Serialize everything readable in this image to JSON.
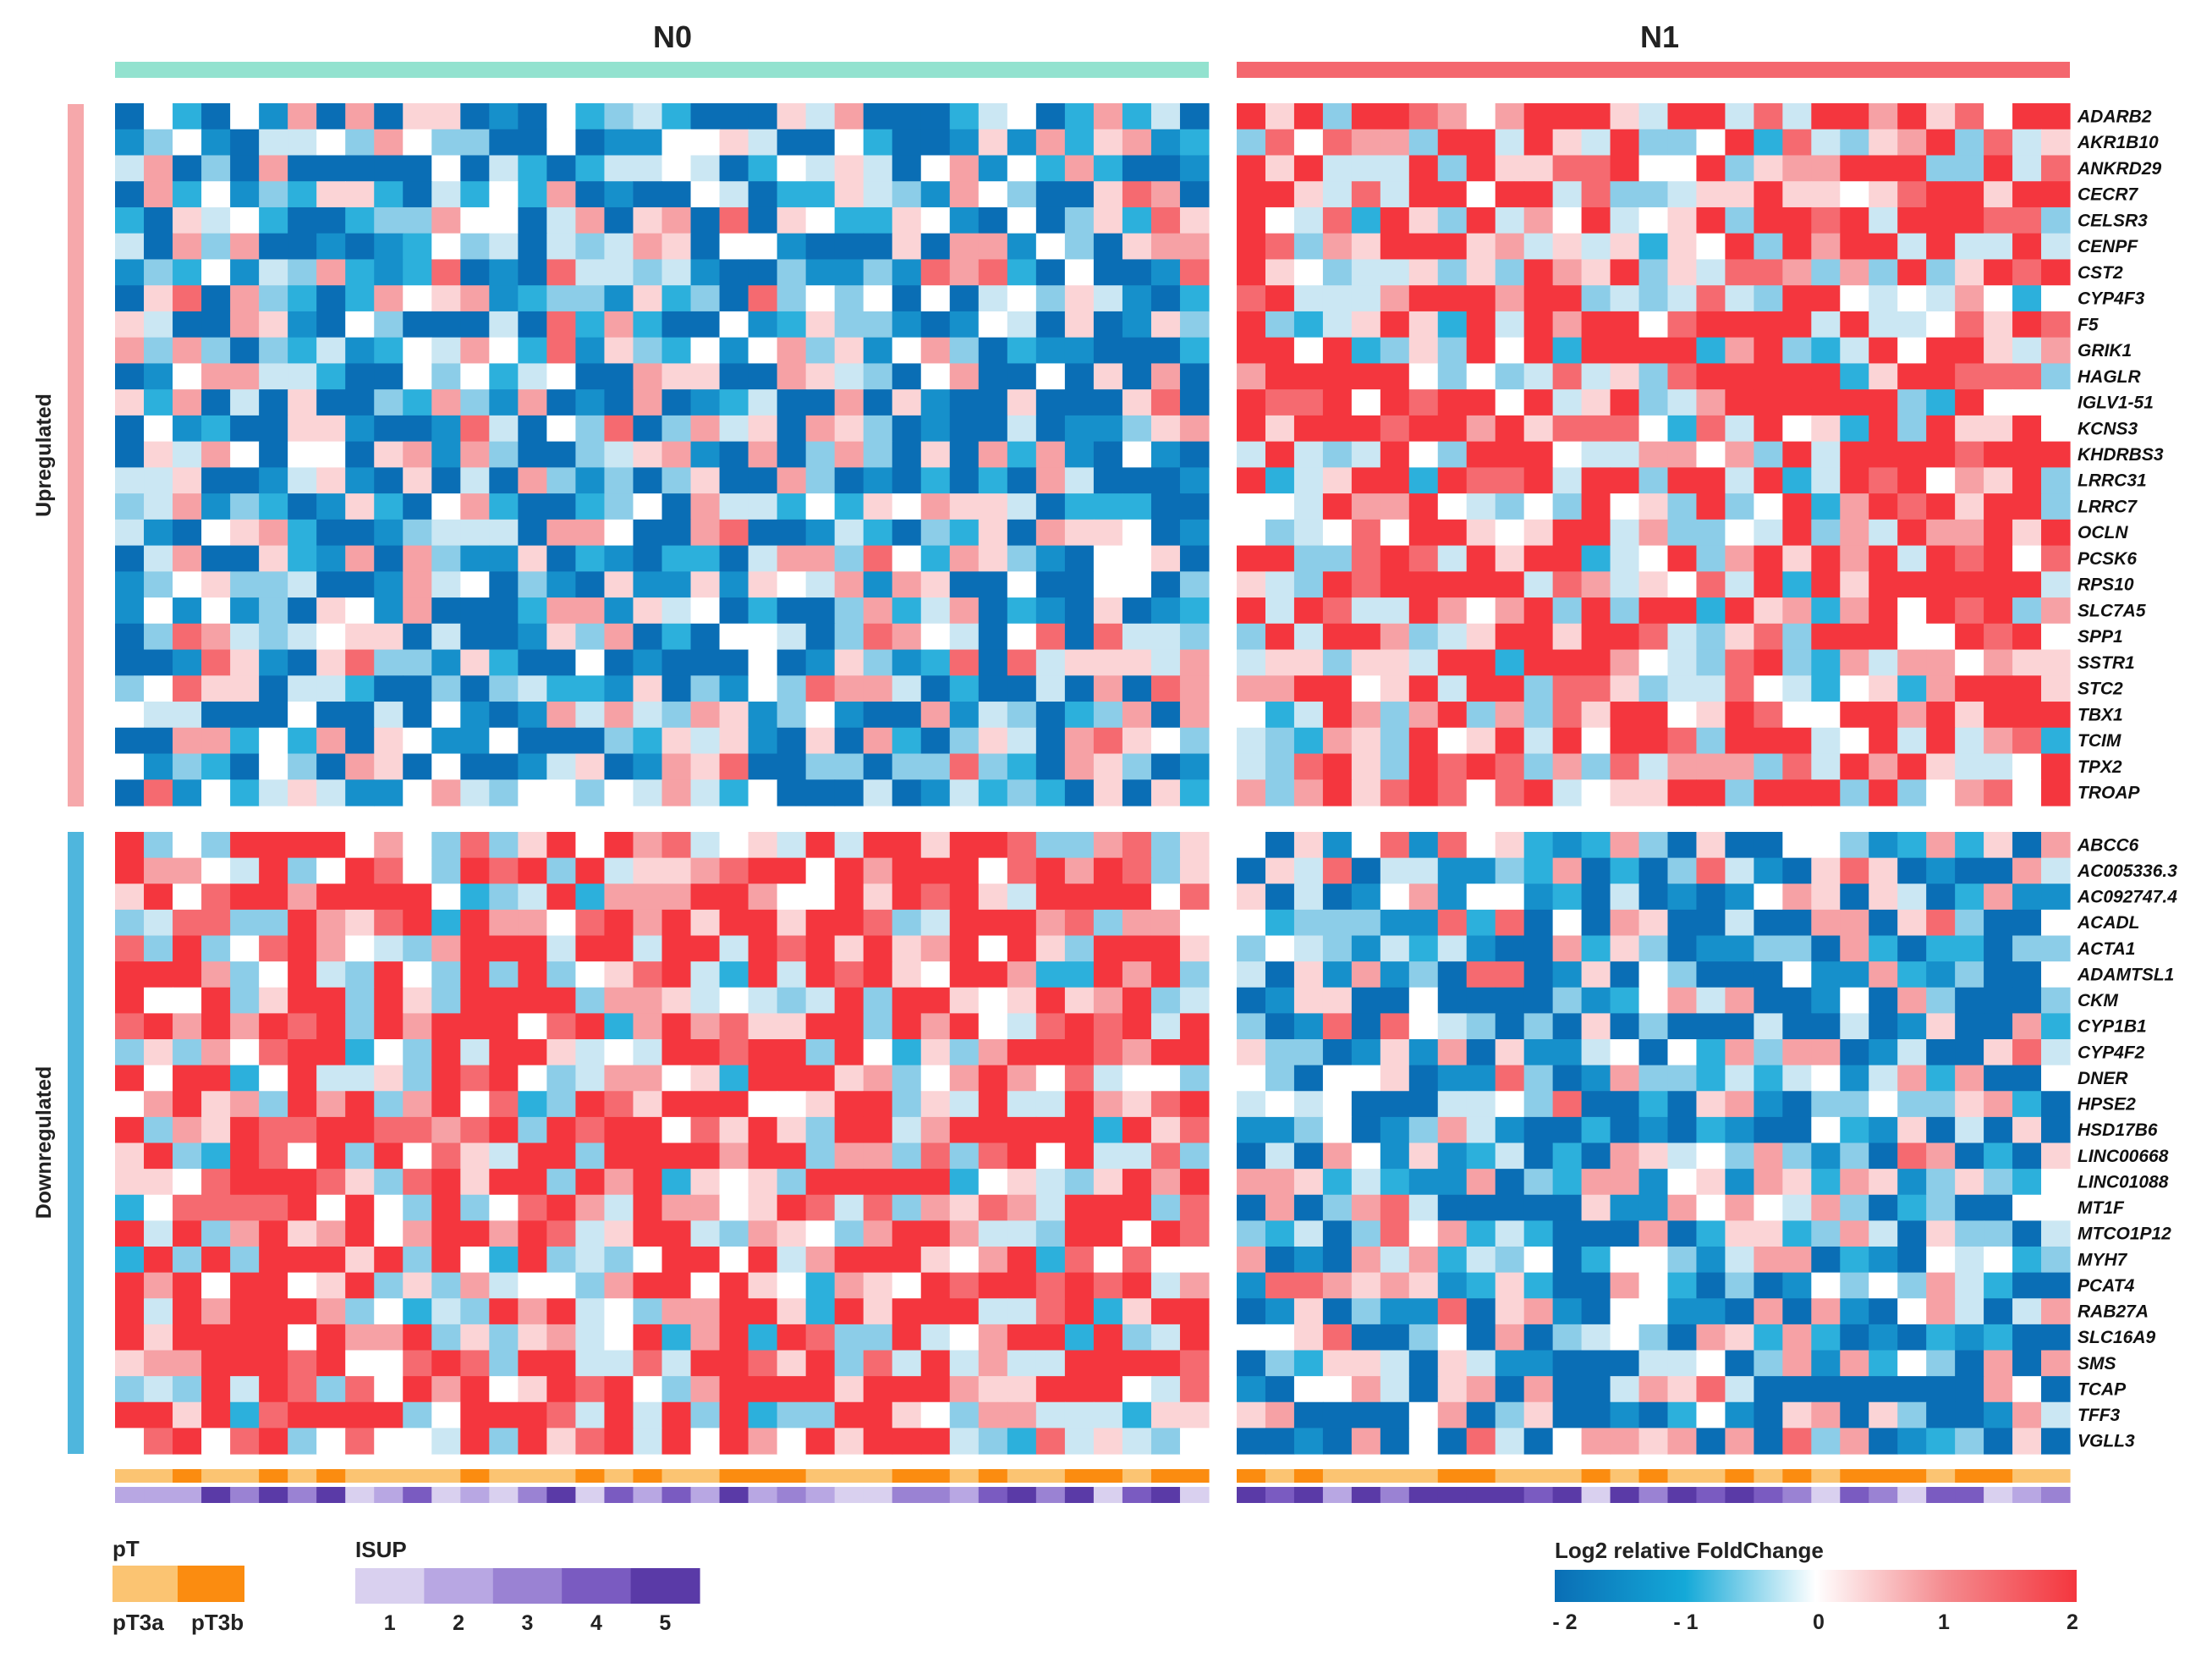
{
  "chart_data": {
    "type": "heatmap",
    "groups": [
      {
        "label": "N0",
        "samples": 38,
        "header_color": "#8fe0cc"
      },
      {
        "label": "N1",
        "samples": 29,
        "header_color": "#f4676e"
      }
    ],
    "sections": [
      {
        "label": "Upregulated",
        "color": "#f6a8ab",
        "genes": [
          "ADARB2",
          "AKR1B10",
          "ANKRD29",
          "CECR7",
          "CELSR3",
          "CENPF",
          "CST2",
          "CYP4F3",
          "F5",
          "GRIK1",
          "HAGLR",
          "IGLV1-51",
          "KCNS3",
          "KHDRBS3",
          "LRRC31",
          "LRRC7",
          "OCLN",
          "PCSK6",
          "RPS10",
          "SLC7A5",
          "SPP1",
          "SSTR1",
          "STC2",
          "TBX1",
          "TCIM",
          "TPX2",
          "TROAP"
        ]
      },
      {
        "label": "Downregulated",
        "color": "#4fb6dd",
        "genes": [
          "ABCC6",
          "AC005336.3",
          "AC092747.4",
          "ACADL",
          "ACTA1",
          "ADAMTSL1",
          "CKM",
          "CYP1B1",
          "CYP4F2",
          "DNER",
          "HPSE2",
          "HSD17B6",
          "LINC00668",
          "LINC01088",
          "MT1F",
          "MTCO1P12",
          "MYH7",
          "PCAT4",
          "RAB27A",
          "SLC16A9",
          "SMS",
          "TCAP",
          "TFF3",
          "VGLL3"
        ]
      }
    ],
    "value_range": [
      -2,
      2
    ],
    "pattern_note": "Upregulated genes: mostly blue (below 0) in N0, mostly red (above 0) in N1. Downregulated genes: mostly red in N0, mostly blue in N1.",
    "annotations": {
      "pT": {
        "title": "pT",
        "levels": [
          "pT3a",
          "pT3b"
        ],
        "colors": [
          "#fbc472",
          "#fb8c10"
        ]
      },
      "ISUP": {
        "title": "ISUP",
        "levels": [
          "1",
          "2",
          "3",
          "4",
          "5"
        ],
        "colors": [
          "#d9d0ef",
          "#b8a7e3",
          "#9a82d3",
          "#7a5bc1",
          "#5a3aa7"
        ]
      }
    },
    "colorbar": {
      "title": "Log2 relative FoldChange",
      "ticks": [
        "- 2",
        "- 1",
        "0",
        "1",
        "2"
      ],
      "colors": [
        "#0a6eb5",
        "#14a9d8",
        "#ffffff",
        "#f48a8e",
        "#f4363e"
      ]
    }
  }
}
